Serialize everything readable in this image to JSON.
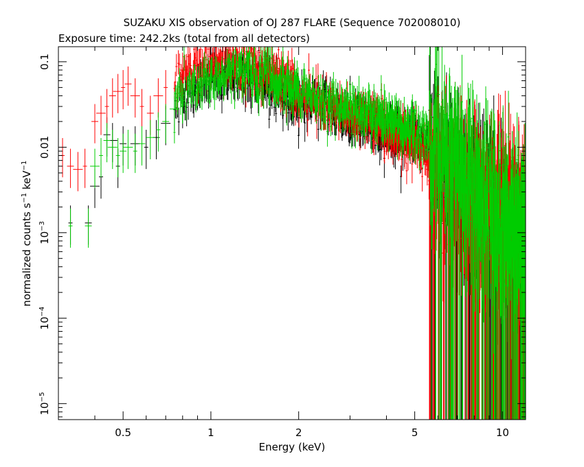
{
  "chart_data": {
    "type": "scatter",
    "title": "SUZAKU XIS observation of OJ 287 FLARE (Sequence 702008010)",
    "subtitle": "Exposure time: 242.2ks (total from all detectors)",
    "xlabel": "Energy (keV)",
    "ylabel_main": "normalized counts s",
    "ylabel_sup1": "−1",
    "ylabel_mid": " keV",
    "ylabel_sup2": "−1",
    "x_scale": "log",
    "y_scale": "log",
    "xlim": [
      0.3,
      12.0
    ],
    "ylim": [
      6.5e-06,
      0.15
    ],
    "x_ticks": [
      {
        "value": 0.5,
        "label": "0.5"
      },
      {
        "value": 1,
        "label": "1"
      },
      {
        "value": 2,
        "label": "2"
      },
      {
        "value": 5,
        "label": "5"
      },
      {
        "value": 10,
        "label": "10"
      }
    ],
    "y_ticks": [
      {
        "value": 0.1,
        "base": "0.1",
        "exp": ""
      },
      {
        "value": 0.01,
        "base": "0.01",
        "exp": ""
      },
      {
        "value": 0.001,
        "base": "10",
        "exp": "−3"
      },
      {
        "value": 0.0001,
        "base": "10",
        "exp": "−4"
      },
      {
        "value": 1e-05,
        "base": "10",
        "exp": "−5"
      }
    ],
    "legend": "none",
    "grid": false,
    "series": [
      {
        "color": "#000000",
        "profile": [
          [
            0.38,
            0.0012
          ],
          [
            0.4,
            0.004
          ],
          [
            0.45,
            0.012
          ],
          [
            0.55,
            0.013
          ],
          [
            0.7,
            0.022
          ],
          [
            0.8,
            0.04
          ],
          [
            1.0,
            0.065
          ],
          [
            1.3,
            0.07
          ],
          [
            1.6,
            0.055
          ],
          [
            2.0,
            0.035
          ],
          [
            3.0,
            0.022
          ],
          [
            4.0,
            0.016
          ],
          [
            5.0,
            0.012
          ],
          [
            5.7,
            0.01
          ],
          [
            6.5,
            0.006
          ],
          [
            7.5,
            0.003
          ],
          [
            9.0,
            0.0015
          ],
          [
            10.0,
            0.001
          ],
          [
            12.0,
            0.0008
          ]
        ],
        "points": [
          [
            0.33,
            0.0013
          ],
          [
            0.38,
            0.0013
          ],
          [
            0.4,
            0.0035
          ],
          [
            0.42,
            0.0045
          ],
          [
            0.44,
            0.014
          ],
          [
            0.46,
            0.012
          ],
          [
            0.48,
            0.006
          ],
          [
            0.5,
            0.011
          ],
          [
            0.55,
            0.011
          ],
          [
            0.6,
            0.01
          ],
          [
            0.65,
            0.013
          ],
          [
            0.7,
            0.019
          ],
          [
            0.8,
            0.03
          ],
          [
            0.9,
            0.05
          ],
          [
            1.0,
            0.06
          ],
          [
            1.2,
            0.065
          ],
          [
            1.5,
            0.055
          ],
          [
            2.0,
            0.03
          ],
          [
            3.0,
            0.02
          ],
          [
            4.0,
            0.015
          ],
          [
            5.0,
            0.012
          ]
        ]
      },
      {
        "color": "#ff0000",
        "profile": [
          [
            0.3,
            0.007
          ],
          [
            0.35,
            0.007
          ],
          [
            0.4,
            0.02
          ],
          [
            0.45,
            0.04
          ],
          [
            0.5,
            0.05
          ],
          [
            0.6,
            0.04
          ],
          [
            0.7,
            0.05
          ],
          [
            0.8,
            0.08
          ],
          [
            1.0,
            0.1
          ],
          [
            1.2,
            0.1
          ],
          [
            1.5,
            0.08
          ],
          [
            2.0,
            0.045
          ],
          [
            3.0,
            0.025
          ],
          [
            4.0,
            0.017
          ],
          [
            5.0,
            0.012
          ],
          [
            5.7,
            0.006
          ],
          [
            6.5,
            0.004
          ],
          [
            7.5,
            0.003
          ],
          [
            9.0,
            0.002
          ],
          [
            10.0,
            0.002
          ],
          [
            12.0,
            0.0018
          ]
        ],
        "points": [
          [
            0.31,
            0.008
          ],
          [
            0.33,
            0.006
          ],
          [
            0.35,
            0.0055
          ],
          [
            0.37,
            0.006
          ],
          [
            0.4,
            0.02
          ],
          [
            0.42,
            0.025
          ],
          [
            0.44,
            0.03
          ],
          [
            0.46,
            0.04
          ],
          [
            0.48,
            0.045
          ],
          [
            0.5,
            0.05
          ],
          [
            0.52,
            0.055
          ],
          [
            0.55,
            0.04
          ],
          [
            0.58,
            0.03
          ],
          [
            0.62,
            0.025
          ],
          [
            0.66,
            0.04
          ],
          [
            0.7,
            0.05
          ],
          [
            0.8,
            0.08
          ],
          [
            0.9,
            0.09
          ],
          [
            1.0,
            0.1
          ]
        ]
      },
      {
        "color": "#00cc00",
        "profile": [
          [
            0.33,
            0.0012
          ],
          [
            0.38,
            0.0013
          ],
          [
            0.4,
            0.006
          ],
          [
            0.45,
            0.012
          ],
          [
            0.5,
            0.01
          ],
          [
            0.6,
            0.012
          ],
          [
            0.7,
            0.025
          ],
          [
            0.8,
            0.045
          ],
          [
            1.0,
            0.07
          ],
          [
            1.3,
            0.08
          ],
          [
            1.6,
            0.065
          ],
          [
            2.0,
            0.045
          ],
          [
            3.0,
            0.03
          ],
          [
            4.0,
            0.022
          ],
          [
            5.0,
            0.017
          ],
          [
            5.7,
            0.013
          ],
          [
            6.5,
            0.008
          ],
          [
            7.5,
            0.005
          ],
          [
            9.0,
            0.002
          ],
          [
            10.0,
            0.0015
          ],
          [
            12.0,
            0.0012
          ]
        ],
        "points": [
          [
            0.33,
            0.0012
          ],
          [
            0.38,
            0.0012
          ],
          [
            0.4,
            0.006
          ],
          [
            0.42,
            0.008
          ],
          [
            0.44,
            0.012
          ],
          [
            0.46,
            0.01
          ],
          [
            0.48,
            0.008
          ],
          [
            0.5,
            0.009
          ],
          [
            0.52,
            0.01
          ],
          [
            0.55,
            0.009
          ],
          [
            0.58,
            0.011
          ],
          [
            0.62,
            0.013
          ],
          [
            0.66,
            0.016
          ],
          [
            0.7,
            0.02
          ],
          [
            0.75,
            0.028
          ],
          [
            0.8,
            0.035
          ],
          [
            0.9,
            0.055
          ],
          [
            1.0,
            0.065
          ]
        ]
      }
    ]
  }
}
